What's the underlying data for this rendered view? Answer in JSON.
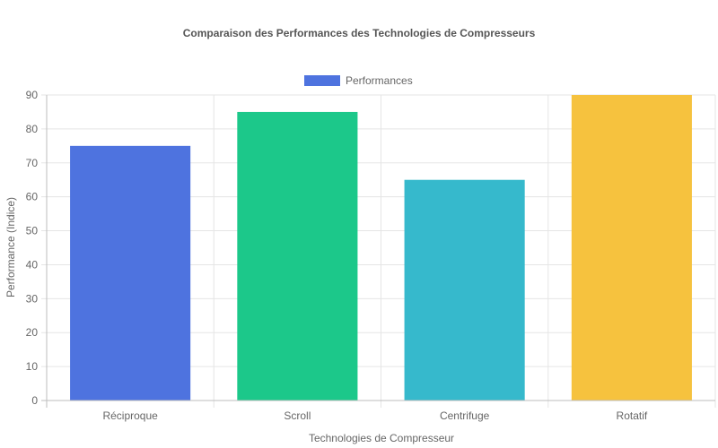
{
  "chart_data": {
    "type": "bar",
    "title": "Comparaison des Performances des Technologies de Compresseurs",
    "xlabel": "Technologies de Compresseur",
    "ylabel": "Performance (Indice)",
    "categories": [
      "Réciproque",
      "Scroll",
      "Centrifuge",
      "Rotatif"
    ],
    "series": [
      {
        "name": "Performances",
        "values": [
          75,
          85,
          65,
          90
        ],
        "colors": [
          "#4e73df",
          "#1cc88a",
          "#36b9cc",
          "#f6c23e"
        ]
      }
    ],
    "ylim": [
      0,
      90
    ],
    "yticks": [
      0,
      10,
      20,
      30,
      40,
      50,
      60,
      70,
      80,
      90
    ],
    "legend": {
      "position": "top",
      "swatch_color": "#4e73df"
    },
    "grid": true
  }
}
